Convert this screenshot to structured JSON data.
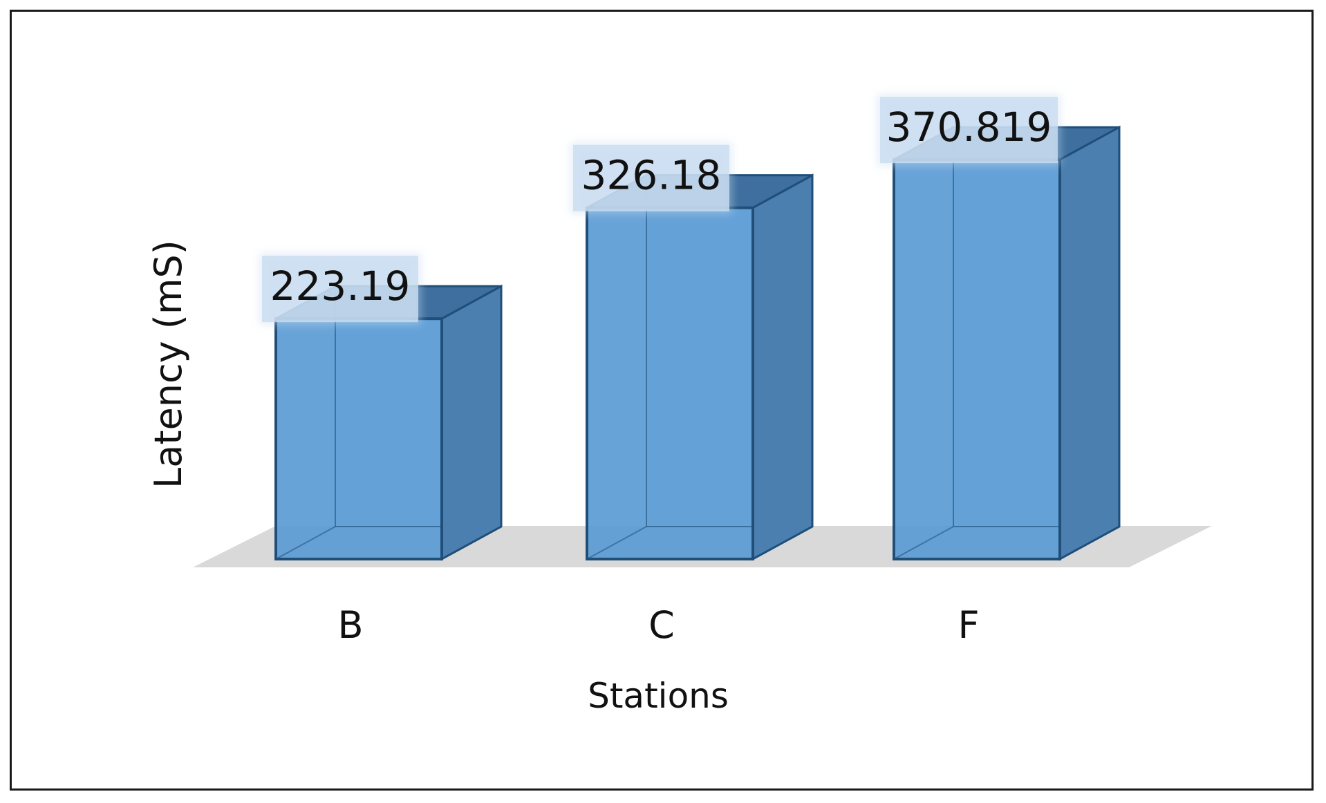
{
  "chart_data": {
    "type": "bar",
    "style": "3d-column",
    "categories": [
      "B",
      "C",
      "F"
    ],
    "values": [
      223.19,
      326.18,
      370.819
    ],
    "value_labels": [
      "223.19",
      "326.18",
      "370.819"
    ],
    "title": "",
    "xlabel": "Stations",
    "ylabel": "Latency (mS)",
    "grid": false,
    "legend": "none",
    "colors": {
      "bar_front": "#5b9bd5",
      "bar_side": "#4a7fb0",
      "bar_top": "#3e6f9e",
      "bar_edge": "#1f4e79",
      "floor": "#d9d9d9",
      "label_box": "#c9ddf0"
    }
  }
}
